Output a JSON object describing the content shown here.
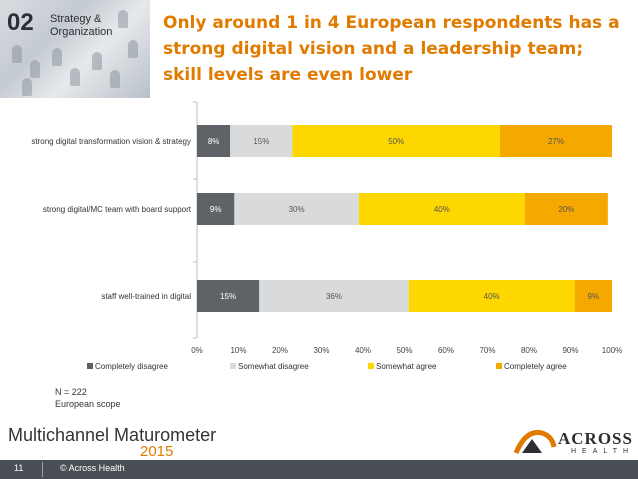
{
  "header": {
    "section_number": "02",
    "section_label": "Strategy &\nOrganization",
    "title": "Only around 1 in 4 European respondents has a strong digital vision and a leadership team; skill levels are even lower"
  },
  "chart_data": {
    "type": "stacked-bar-horizontal",
    "categories": [
      "strong digital transformation vision & strategy",
      "strong digital/MC team with board support",
      "staff well-trained in digital"
    ],
    "series": [
      {
        "name": "Completely disagree",
        "color": "#5f6368",
        "label_color": "#ffffff",
        "values": [
          8,
          9,
          15
        ]
      },
      {
        "name": "Somewhat disagree",
        "color": "#d9dadc",
        "label_color": "#555555",
        "values": [
          15,
          30,
          36
        ]
      },
      {
        "name": "Somewhat agree",
        "color": "#ffd700",
        "label_color": "#555555",
        "values": [
          50,
          40,
          40
        ]
      },
      {
        "name": "Completely agree",
        "color": "#f5a800",
        "label_color": "#555555",
        "values": [
          27,
          20,
          9
        ]
      }
    ],
    "xlim": [
      0,
      100
    ],
    "xticks": [
      "0%",
      "10%",
      "20%",
      "30%",
      "40%",
      "50%",
      "60%",
      "70%",
      "80%",
      "90%",
      "100%"
    ],
    "legend": "bottom"
  },
  "note": {
    "line1": "N = 222",
    "line2": "European scope"
  },
  "branding": {
    "product": "Multichannel Maturometer",
    "year": "2015",
    "company": "ACROSS",
    "company_sub": "HEALTH"
  },
  "footer": {
    "page": "11",
    "copyright": "© Across Health"
  },
  "colors": {
    "accent": "#e07b00",
    "footer": "#4a4f55"
  }
}
